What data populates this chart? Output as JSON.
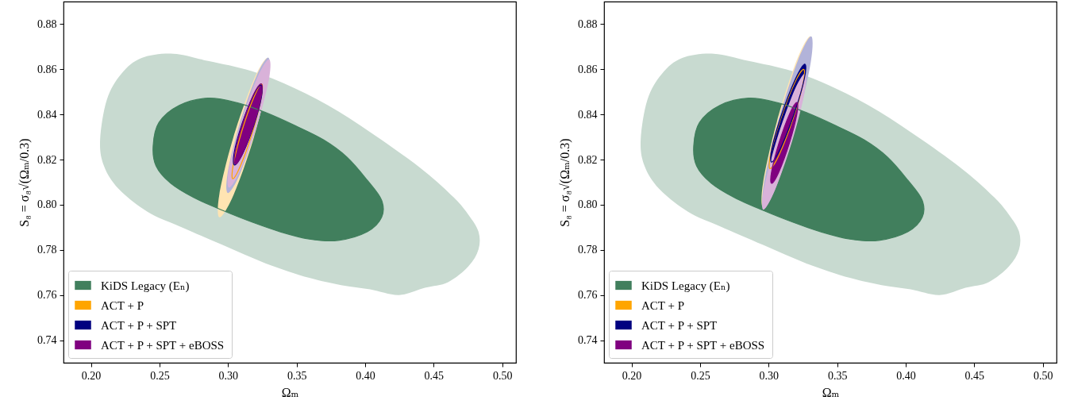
{
  "chart_data": [
    {
      "type": "area",
      "xlabel": "Ωₘ",
      "ylabel": "S₈ = σ₈√(Ωₘ/0.3)",
      "xlim": [
        0.18,
        0.51
      ],
      "ylim": [
        0.73,
        0.89
      ],
      "xticks": [
        {
          "value": 0.2,
          "label": "0.20"
        },
        {
          "value": 0.25,
          "label": "0.25"
        },
        {
          "value": 0.3,
          "label": "0.30"
        },
        {
          "value": 0.35,
          "label": "0.35"
        },
        {
          "value": 0.4,
          "label": "0.40"
        },
        {
          "value": 0.45,
          "label": "0.45"
        },
        {
          "value": 0.5,
          "label": "0.50"
        }
      ],
      "yticks": [
        0.74,
        0.76,
        0.78,
        {
          "value": 0.8,
          "label": "0.80"
        },
        0.82,
        0.84,
        0.86,
        0.88
      ],
      "legend": "bottom left",
      "series": [
        {
          "color": "#c8dad0",
          "x": [
            0.2067,
            0.2116,
            0.2222,
            0.237,
            0.26,
            0.2854,
            0.3171,
            0.3487,
            0.3804,
            0.412,
            0.4436,
            0.4647,
            0.4753,
            0.4827,
            0.4827,
            0.4753,
            0.4605,
            0.4436,
            0.4247,
            0.4036,
            0.3825,
            0.3593,
            0.3276,
            0.296,
            0.2644,
            0.2412,
            0.2201,
            0.2095
          ],
          "values": [
            0.8287,
            0.8465,
            0.858,
            0.865,
            0.8669,
            0.8637,
            0.8592,
            0.8516,
            0.8414,
            0.8287,
            0.8147,
            0.8032,
            0.7956,
            0.788,
            0.7803,
            0.7727,
            0.7657,
            0.7632,
            0.76,
            0.7625,
            0.7644,
            0.7676,
            0.774,
            0.7822,
            0.7905,
            0.7969,
            0.8071,
            0.8172
          ]
        },
        {
          "name": "KiDS Legacy (Eₙ)",
          "color": "#417f5d",
          "x": [
            0.2454,
            0.2496,
            0.2644,
            0.2854,
            0.3066,
            0.3276,
            0.3487,
            0.3698,
            0.3867,
            0.4015,
            0.412,
            0.412,
            0.4015,
            0.3804,
            0.3593,
            0.3382,
            0.3171,
            0.296,
            0.2749,
            0.258,
            0.2475
          ],
          "values": [
            0.8262,
            0.8364,
            0.844,
            0.8472,
            0.8452,
            0.8408,
            0.8351,
            0.8287,
            0.8211,
            0.8109,
            0.802,
            0.7944,
            0.788,
            0.7842,
            0.7848,
            0.788,
            0.7924,
            0.7975,
            0.8032,
            0.8096,
            0.8172
          ]
        },
        {
          "color": "#ffe4b2",
          "x": [
            0.3287,
            0.3289,
            0.3188,
            0.3043,
            0.2939,
            0.2937,
            0.3038,
            0.3183
          ],
          "values": [
            0.865,
            0.8547,
            0.8297,
            0.8047,
            0.7944,
            0.8047,
            0.8297,
            0.8547
          ]
        },
        {
          "name": "ACT + P",
          "color": "#ffa500",
          "x": [
            0.3245,
            0.3242,
            0.318,
            0.3094,
            0.3035,
            0.3038,
            0.31,
            0.3186
          ],
          "values": [
            0.8535,
            0.8473,
            0.8325,
            0.8177,
            0.8115,
            0.8177,
            0.8325,
            0.8473
          ]
        },
        {
          "color": "#b2b3d9",
          "x": [
            0.3292,
            0.3295,
            0.3211,
            0.3089,
            0.3,
            0.2997,
            0.3081,
            0.3203
          ],
          "values": [
            0.8652,
            0.8564,
            0.8352,
            0.814,
            0.8052,
            0.814,
            0.8352,
            0.8564
          ]
        },
        {
          "name": "ACT + P + SPT",
          "color": "#000080",
          "x": [
            0.324,
            0.3244,
            0.3189,
            0.3108,
            0.3048,
            0.3044,
            0.3099,
            0.318
          ],
          "values": [
            0.853,
            0.8478,
            0.8353,
            0.8228,
            0.8176,
            0.8228,
            0.8353,
            0.8478
          ]
        },
        {
          "color": "#d9b2d9",
          "x": [
            0.3298,
            0.33,
            0.3215,
            0.3094,
            0.3008,
            0.3006,
            0.3091,
            0.3212
          ],
          "values": [
            0.8644,
            0.8561,
            0.836,
            0.8159,
            0.8076,
            0.8159,
            0.836,
            0.8561
          ]
        },
        {
          "name": "ACT + P + SPT + eBOSS",
          "color": "#800080",
          "x": [
            0.3241,
            0.3243,
            0.3189,
            0.3111,
            0.3053,
            0.3051,
            0.3105,
            0.3183
          ],
          "values": [
            0.8536,
            0.8484,
            0.8358,
            0.8232,
            0.818,
            0.8232,
            0.8358,
            0.8484
          ]
        }
      ]
    },
    {
      "type": "area",
      "xlabel": "Ωₘ",
      "ylabel": "S₈ = σ₈√(Ωₘ/0.3)",
      "xlim": [
        0.18,
        0.51
      ],
      "ylim": [
        0.73,
        0.89
      ],
      "xticks": [
        {
          "value": 0.2,
          "label": "0.20"
        },
        {
          "value": 0.25,
          "label": "0.25"
        },
        {
          "value": 0.3,
          "label": "0.30"
        },
        {
          "value": 0.35,
          "label": "0.35"
        },
        {
          "value": 0.4,
          "label": "0.40"
        },
        {
          "value": 0.45,
          "label": "0.45"
        },
        {
          "value": 0.5,
          "label": "0.50"
        }
      ],
      "yticks": [
        0.74,
        0.76,
        0.78,
        {
          "value": 0.8,
          "label": "0.80"
        },
        0.82,
        0.84,
        0.86,
        0.88
      ],
      "legend": "bottom left",
      "series": [
        {
          "color": "#c8dad0",
          "x": [
            0.2067,
            0.2116,
            0.2222,
            0.237,
            0.26,
            0.2854,
            0.3171,
            0.3487,
            0.3804,
            0.412,
            0.4436,
            0.4647,
            0.4753,
            0.4827,
            0.4827,
            0.4753,
            0.4605,
            0.4436,
            0.4247,
            0.4036,
            0.3825,
            0.3593,
            0.3276,
            0.296,
            0.2644,
            0.2412,
            0.2201,
            0.2095
          ],
          "values": [
            0.8287,
            0.8465,
            0.858,
            0.865,
            0.8669,
            0.8637,
            0.8592,
            0.8516,
            0.8414,
            0.8287,
            0.8147,
            0.8032,
            0.7956,
            0.788,
            0.7803,
            0.7727,
            0.7657,
            0.7632,
            0.76,
            0.7625,
            0.7644,
            0.7676,
            0.774,
            0.7822,
            0.7905,
            0.7969,
            0.8071,
            0.8172
          ]
        },
        {
          "name": "KiDS Legacy (Eₙ)",
          "color": "#417f5d",
          "x": [
            0.2454,
            0.2496,
            0.2644,
            0.2854,
            0.3066,
            0.3276,
            0.3487,
            0.3698,
            0.3867,
            0.4015,
            0.412,
            0.412,
            0.4015,
            0.3804,
            0.3593,
            0.3382,
            0.3171,
            0.296,
            0.2749,
            0.258,
            0.2475
          ],
          "values": [
            0.8262,
            0.8364,
            0.844,
            0.8472,
            0.8452,
            0.8408,
            0.8351,
            0.8287,
            0.8211,
            0.8109,
            0.802,
            0.7944,
            0.788,
            0.7842,
            0.7848,
            0.788,
            0.7924,
            0.7975,
            0.8032,
            0.8096,
            0.8172
          ]
        },
        {
          "color": "#ffe4b2",
          "x": [
            0.3303,
            0.3304,
            0.3204,
            0.3062,
            0.2961,
            0.296,
            0.306,
            0.3202
          ],
          "values": [
            0.8746,
            0.8635,
            0.8367,
            0.8099,
            0.7988,
            0.8099,
            0.8367,
            0.8635
          ]
        },
        {
          "name": "ACT + P",
          "color": "#ffa500",
          "x": [
            0.3255,
            0.3251,
            0.3178,
            0.3079,
            0.3011,
            0.3015,
            0.3088,
            0.3187
          ],
          "values": [
            0.86,
            0.8536,
            0.838,
            0.8224,
            0.816,
            0.8224,
            0.838,
            0.8536
          ]
        },
        {
          "color": "#b2b3d9",
          "x": [
            0.3309,
            0.3308,
            0.3207,
            0.3064,
            0.2965,
            0.2966,
            0.3067,
            0.321
          ],
          "values": [
            0.8746,
            0.8634,
            0.8364,
            0.8094,
            0.7982,
            0.8094,
            0.8364,
            0.8634
          ]
        },
        {
          "name": "ACT + P + SPT",
          "color": "#000080",
          "x": [
            0.3264,
            0.3261,
            0.3188,
            0.3089,
            0.3022,
            0.3025,
            0.3098,
            0.3197
          ],
          "values": [
            0.8623,
            0.8559,
            0.8406,
            0.8253,
            0.8189,
            0.8253,
            0.8406,
            0.8559
          ]
        },
        {
          "color": "#d9b2d9",
          "x": [
            0.3264,
            0.3261,
            0.3171,
            0.3047,
            0.2962,
            0.2965,
            0.3055,
            0.3179
          ],
          "values": [
            0.8582,
            0.8494,
            0.828,
            0.8066,
            0.7978,
            0.8066,
            0.828,
            0.8494
          ]
        },
        {
          "name": "ACT + P + SPT + eBOSS",
          "color": "#800080",
          "x": [
            0.3206,
            0.3206,
            0.3152,
            0.3076,
            0.3022,
            0.3022,
            0.3076,
            0.3152
          ],
          "values": [
            0.8453,
            0.8401,
            0.8274,
            0.8147,
            0.8095,
            0.8147,
            0.8274,
            0.8401
          ]
        }
      ]
    }
  ]
}
